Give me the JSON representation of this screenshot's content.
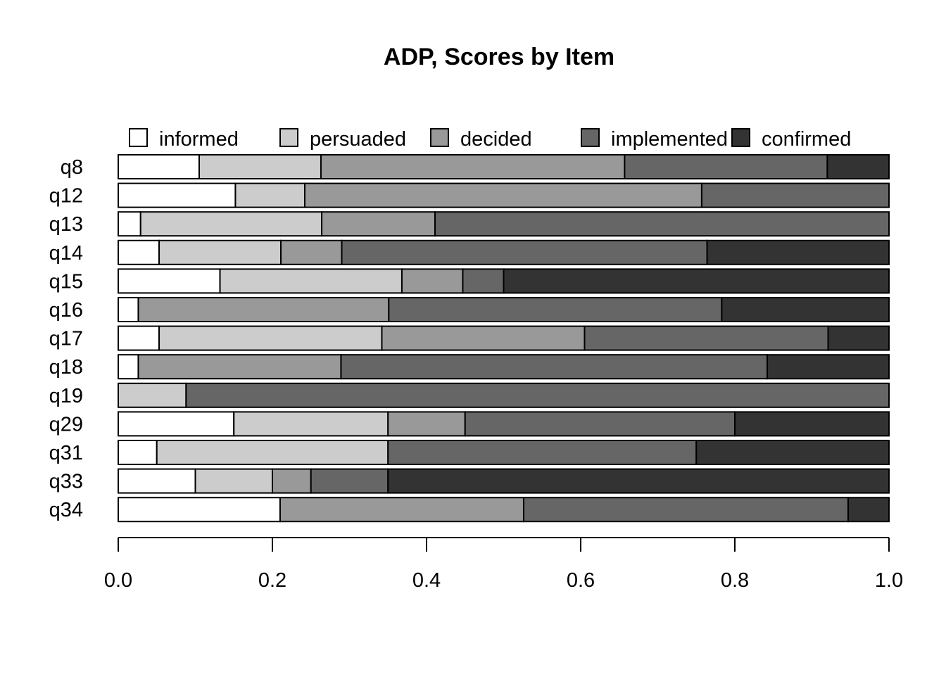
{
  "chart_data": {
    "type": "bar",
    "orientation": "horizontal",
    "stacked": true,
    "title": "ADP, Scores by Item",
    "xlabel": "",
    "ylabel": "",
    "xlim": [
      0,
      1
    ],
    "xticks": [
      0.0,
      0.2,
      0.4,
      0.6,
      0.8,
      1.0
    ],
    "xtick_labels": [
      "0.0",
      "0.2",
      "0.4",
      "0.6",
      "0.8",
      "1.0"
    ],
    "grid": false,
    "legend_position": "top",
    "categories": [
      "q8",
      "q12",
      "q13",
      "q14",
      "q15",
      "q16",
      "q17",
      "q18",
      "q19",
      "q29",
      "q31",
      "q33",
      "q34"
    ],
    "series": [
      {
        "name": "informed",
        "color": "#ffffff",
        "values": [
          0.105,
          0.152,
          0.029,
          0.053,
          0.132,
          0.026,
          0.053,
          0.026,
          0.0,
          0.15,
          0.05,
          0.1,
          0.21
        ]
      },
      {
        "name": "persuaded",
        "color": "#cccccc",
        "values": [
          0.158,
          0.09,
          0.235,
          0.158,
          0.236,
          0.0,
          0.289,
          0.0,
          0.088,
          0.2,
          0.3,
          0.1,
          0.0
        ]
      },
      {
        "name": "decided",
        "color": "#999999",
        "values": [
          0.394,
          0.515,
          0.147,
          0.079,
          0.079,
          0.325,
          0.263,
          0.263,
          0.0,
          0.1,
          0.0,
          0.05,
          0.316
        ]
      },
      {
        "name": "implemented",
        "color": "#666666",
        "values": [
          0.263,
          0.243,
          0.589,
          0.474,
          0.053,
          0.432,
          0.316,
          0.553,
          0.912,
          0.35,
          0.4,
          0.1,
          0.421
        ]
      },
      {
        "name": "confirmed",
        "color": "#333333",
        "values": [
          0.08,
          0.0,
          0.0,
          0.236,
          0.5,
          0.217,
          0.079,
          0.158,
          0.0,
          0.2,
          0.25,
          0.65,
          0.053
        ]
      }
    ]
  }
}
